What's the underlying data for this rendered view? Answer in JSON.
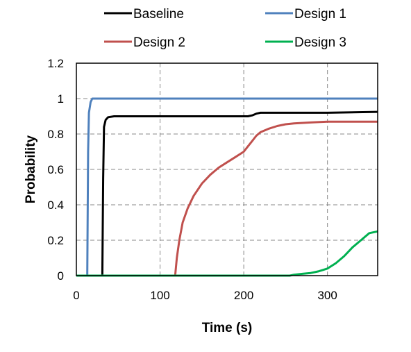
{
  "chart_data": {
    "type": "line",
    "title": "",
    "xlabel": "Time (s)",
    "ylabel": "Probability",
    "xlim": [
      0,
      360
    ],
    "ylim": [
      0,
      1.2
    ],
    "x_ticks": [
      0,
      100,
      200,
      300
    ],
    "x_tick_labels": [
      "0",
      "100",
      "200",
      "300"
    ],
    "y_ticks": [
      0,
      0.2,
      0.4,
      0.6,
      0.8,
      1,
      1.2
    ],
    "y_tick_labels": [
      "0",
      "0.2",
      "0.4",
      "0.6",
      "0.8",
      "1",
      "1.2"
    ],
    "grid": true,
    "grid_style": "dashed",
    "legend_position": "top",
    "series": [
      {
        "name": "Baseline",
        "color": "#000000",
        "points": [
          [
            0,
            0
          ],
          [
            31,
            0
          ],
          [
            32,
            0.55
          ],
          [
            33,
            0.84
          ],
          [
            35,
            0.88
          ],
          [
            38,
            0.895
          ],
          [
            45,
            0.9
          ],
          [
            100,
            0.9
          ],
          [
            200,
            0.9
          ],
          [
            205,
            0.9
          ],
          [
            210,
            0.905
          ],
          [
            215,
            0.915
          ],
          [
            220,
            0.92
          ],
          [
            250,
            0.92
          ],
          [
            300,
            0.92
          ],
          [
            360,
            0.925
          ]
        ]
      },
      {
        "name": "Design 1",
        "color": "#4F81BD",
        "points": [
          [
            0,
            0
          ],
          [
            13,
            0
          ],
          [
            14,
            0.7
          ],
          [
            15,
            0.92
          ],
          [
            17,
            0.98
          ],
          [
            19,
            1.0
          ],
          [
            100,
            1.0
          ],
          [
            200,
            1.0
          ],
          [
            360,
            1.0
          ]
        ]
      },
      {
        "name": "Design 2",
        "color": "#C0504D",
        "points": [
          [
            0,
            0
          ],
          [
            118,
            0
          ],
          [
            120,
            0.1
          ],
          [
            123,
            0.2
          ],
          [
            127,
            0.3
          ],
          [
            133,
            0.38
          ],
          [
            140,
            0.45
          ],
          [
            150,
            0.52
          ],
          [
            160,
            0.57
          ],
          [
            170,
            0.61
          ],
          [
            180,
            0.64
          ],
          [
            190,
            0.67
          ],
          [
            200,
            0.7
          ],
          [
            205,
            0.73
          ],
          [
            210,
            0.76
          ],
          [
            215,
            0.79
          ],
          [
            220,
            0.81
          ],
          [
            230,
            0.83
          ],
          [
            240,
            0.845
          ],
          [
            250,
            0.855
          ],
          [
            260,
            0.86
          ],
          [
            280,
            0.865
          ],
          [
            300,
            0.87
          ],
          [
            330,
            0.87
          ],
          [
            360,
            0.87
          ]
        ]
      },
      {
        "name": "Design 3",
        "color": "#00B050",
        "points": [
          [
            0,
            0
          ],
          [
            100,
            0
          ],
          [
            200,
            0
          ],
          [
            255,
            0
          ],
          [
            260,
            0.005
          ],
          [
            270,
            0.01
          ],
          [
            280,
            0.015
          ],
          [
            290,
            0.025
          ],
          [
            300,
            0.04
          ],
          [
            310,
            0.07
          ],
          [
            320,
            0.11
          ],
          [
            330,
            0.16
          ],
          [
            340,
            0.2
          ],
          [
            350,
            0.24
          ],
          [
            360,
            0.25
          ]
        ]
      }
    ]
  }
}
